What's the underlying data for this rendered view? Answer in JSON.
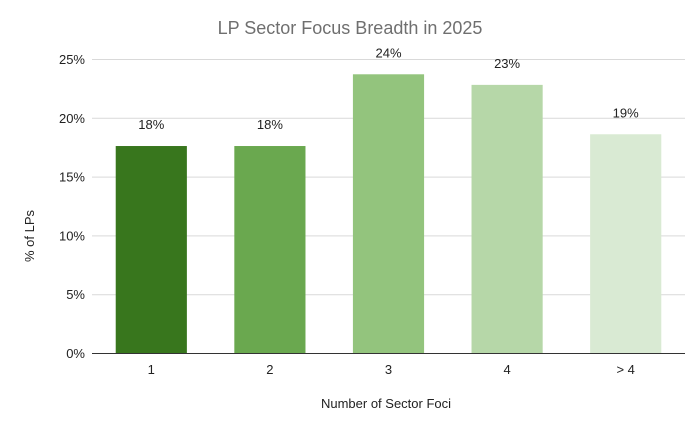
{
  "chart_data": {
    "type": "bar",
    "title": "LP Sector Focus Breadth in 2025",
    "xlabel": "Number of Sector Foci",
    "ylabel": "% of LPs",
    "categories": [
      "1",
      "2",
      "3",
      "4",
      "> 4"
    ],
    "values": [
      17.6,
      17.6,
      23.7,
      22.8,
      18.6
    ],
    "data_labels": [
      "18%",
      "18%",
      "24%",
      "23%",
      "19%"
    ],
    "colors": [
      "#38761d",
      "#6aa84f",
      "#93c47d",
      "#b6d7a8",
      "#d9ead3"
    ],
    "ylim": [
      0,
      25
    ],
    "y_ticks": [
      0,
      5,
      10,
      15,
      20,
      25
    ],
    "y_tick_labels": [
      "0%",
      "5%",
      "10%",
      "15%",
      "20%",
      "25%"
    ],
    "grid": true,
    "legend": "none"
  }
}
